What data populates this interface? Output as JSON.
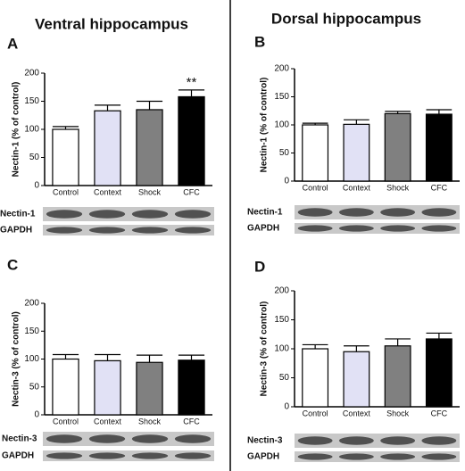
{
  "headers": [
    "Ventral hippocampus",
    "Dorsal hippocampus"
  ],
  "chart_data": [
    {
      "panel": "A",
      "type": "bar",
      "y_label": "Nectin-1 (% of control)",
      "categories": [
        "Control",
        "Context",
        "Shock",
        "CFC"
      ],
      "values": [
        100,
        133,
        135,
        158
      ],
      "errors": [
        5,
        10,
        15,
        12
      ],
      "colors": [
        "#ffffff",
        "#e1e1f5",
        "#808080",
        "#000000"
      ],
      "ylim": [
        0,
        200
      ],
      "yticks": [
        0,
        50,
        100,
        150,
        200
      ],
      "annotation": "**",
      "annotation_category": "CFC",
      "blot_labels": [
        "Nectin-1",
        "GAPDH"
      ]
    },
    {
      "panel": "B",
      "type": "bar",
      "y_label": "Nectin-1 (% of control)",
      "categories": [
        "Control",
        "Context",
        "Shock",
        "CFC"
      ],
      "values": [
        100,
        101,
        120,
        119
      ],
      "errors": [
        3,
        8,
        4,
        8
      ],
      "colors": [
        "#ffffff",
        "#e1e1f5",
        "#808080",
        "#000000"
      ],
      "ylim": [
        0,
        200
      ],
      "yticks": [
        0,
        50,
        100,
        150,
        200
      ],
      "blot_labels": [
        "Nectin-1",
        "GAPDH"
      ]
    },
    {
      "panel": "C",
      "type": "bar",
      "y_label": "Nectin-3 (% of control)",
      "categories": [
        "Control",
        "Context",
        "Shock",
        "CFC"
      ],
      "values": [
        100,
        97,
        94,
        98
      ],
      "errors": [
        8,
        11,
        13,
        9
      ],
      "colors": [
        "#ffffff",
        "#e1e1f5",
        "#808080",
        "#000000"
      ],
      "ylim": [
        0,
        200
      ],
      "yticks": [
        0,
        50,
        100,
        150,
        200
      ],
      "blot_labels": [
        "Nectin-3",
        "GAPDH"
      ]
    },
    {
      "panel": "D",
      "type": "bar",
      "y_label": "Nectin-3 (% of control)",
      "categories": [
        "Control",
        "Context",
        "Shock",
        "CFC"
      ],
      "values": [
        100,
        95,
        105,
        117
      ],
      "errors": [
        7,
        10,
        12,
        10
      ],
      "colors": [
        "#ffffff",
        "#e1e1f5",
        "#808080",
        "#000000"
      ],
      "ylim": [
        0,
        200
      ],
      "yticks": [
        0,
        50,
        100,
        150,
        200
      ],
      "blot_labels": [
        "Nectin-3",
        "GAPDH"
      ]
    }
  ]
}
